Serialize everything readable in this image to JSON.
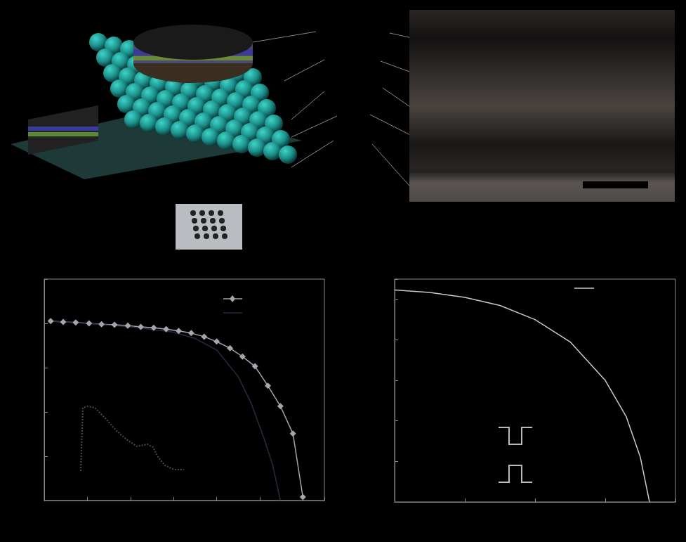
{
  "chart_data": [
    {
      "type": "line",
      "tick_labels": false,
      "grid": false,
      "xlim": [
        0,
        6.5
      ],
      "xticks": [
        0,
        1,
        2,
        3,
        4,
        5,
        6
      ],
      "ylim": [
        0,
        5
      ],
      "yticks": [
        0,
        1,
        2,
        3,
        4,
        5
      ],
      "series": [
        {
          "color": "#a9a3ad",
          "marker": "diamond",
          "line_style": "solid",
          "x": [
            0.15,
            0.44,
            0.73,
            1.04,
            1.33,
            1.63,
            1.94,
            2.24,
            2.54,
            2.83,
            3.12,
            3.41,
            3.71,
            4.0,
            4.31,
            4.6,
            4.89,
            5.19,
            5.48,
            5.77,
            6.0
          ],
          "values": [
            4.05,
            4.03,
            4.02,
            4.0,
            3.98,
            3.97,
            3.95,
            3.92,
            3.9,
            3.87,
            3.83,
            3.78,
            3.7,
            3.59,
            3.44,
            3.25,
            3.03,
            2.59,
            2.13,
            1.51,
            0.08
          ]
        },
        {
          "color": "#34263f",
          "marker": "none",
          "line_style": "solid",
          "x": [
            0.15,
            1.0,
            2.0,
            3.0,
            3.5,
            4.0,
            4.5,
            4.8,
            5.1,
            5.3,
            5.48
          ],
          "values": [
            4.05,
            4.0,
            3.92,
            3.8,
            3.66,
            3.4,
            2.8,
            2.2,
            1.4,
            0.8,
            0.0
          ]
        }
      ]
    },
    {
      "type": "line",
      "tick_labels": false,
      "grid": false,
      "xlim": [
        0,
        160
      ],
      "ylim": [
        0,
        110
      ],
      "series": [
        {
          "color": "#4a4a4a",
          "marker": "none",
          "line_style": "dotted",
          "x": [
            5,
            8,
            15,
            25,
            40,
            55,
            70,
            85,
            100,
            108,
            115,
            125,
            138,
            152
          ],
          "values": [
            10,
            100,
            102,
            100,
            85,
            68,
            55,
            45,
            48,
            44,
            30,
            18,
            12,
            12
          ]
        }
      ]
    },
    {
      "type": "line",
      "tick_labels": false,
      "grid": false,
      "xlim": [
        0,
        4
      ],
      "xticks": [
        0,
        1,
        2,
        3,
        4
      ],
      "ylim": [
        0,
        5.5
      ],
      "yticks": [
        0,
        1,
        2,
        3,
        4,
        5
      ],
      "series": [
        {
          "color": "#c9c9c9",
          "marker": "none",
          "line_style": "solid",
          "x": [
            0,
            0.5,
            1,
            1.5,
            2,
            2.5,
            3,
            3.3,
            3.5,
            3.63
          ],
          "values": [
            5.23,
            5.17,
            5.05,
            4.85,
            4.5,
            3.95,
            3.0,
            2.1,
            1.1,
            0.0
          ]
        }
      ]
    }
  ]
}
